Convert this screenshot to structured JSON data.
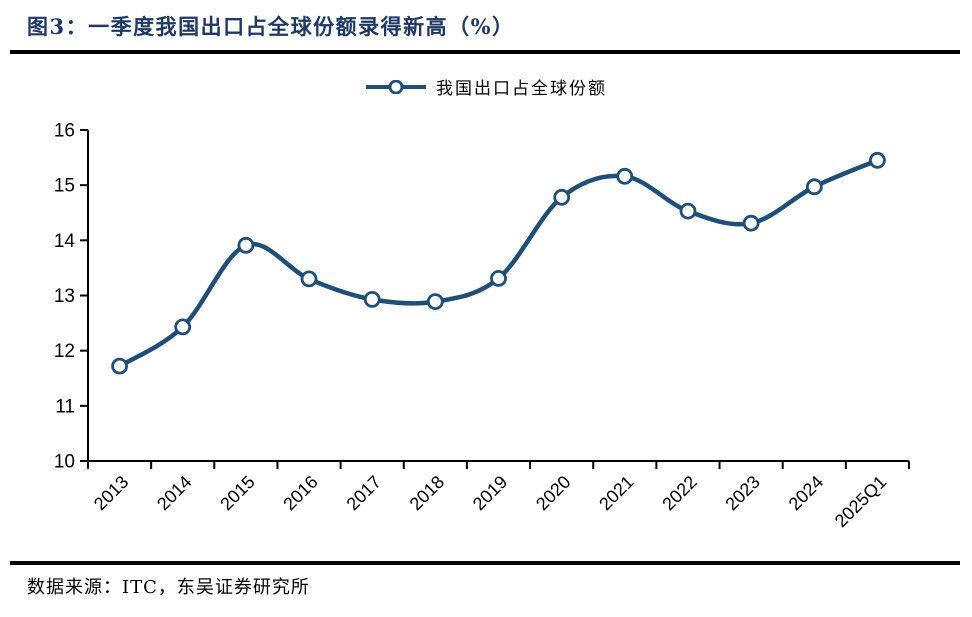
{
  "header": {
    "title": "图3：一季度我国出口占全球份额录得新高（%）"
  },
  "footer": {
    "source": "数据来源：ITC，东吴证券研究所"
  },
  "colors": {
    "line": "#1f4e79",
    "marker_fill": "#ffffff",
    "title": "#1f3864",
    "axis": "#000000",
    "label": "#000000"
  },
  "chart_data": {
    "type": "line",
    "title": "图3：一季度我国出口占全球份额录得新高（%）",
    "categories": [
      "2013",
      "2014",
      "2015",
      "2016",
      "2017",
      "2018",
      "2019",
      "2020",
      "2021",
      "2022",
      "2023",
      "2024",
      "2025Q1"
    ],
    "series": [
      {
        "name": "我国出口占全球份额",
        "values": [
          11.72,
          12.43,
          13.91,
          13.3,
          12.93,
          12.89,
          13.31,
          14.78,
          15.16,
          14.53,
          14.31,
          14.97,
          15.45
        ]
      }
    ],
    "xlabel": "",
    "ylabel": "",
    "ylim": [
      10,
      16
    ],
    "yticks": [
      10,
      11,
      12,
      13,
      14,
      15,
      16
    ],
    "grid": false,
    "smooth": true,
    "marker": "open-circle",
    "legend_position": "top-center",
    "x_tick_label_rotation": -45
  }
}
